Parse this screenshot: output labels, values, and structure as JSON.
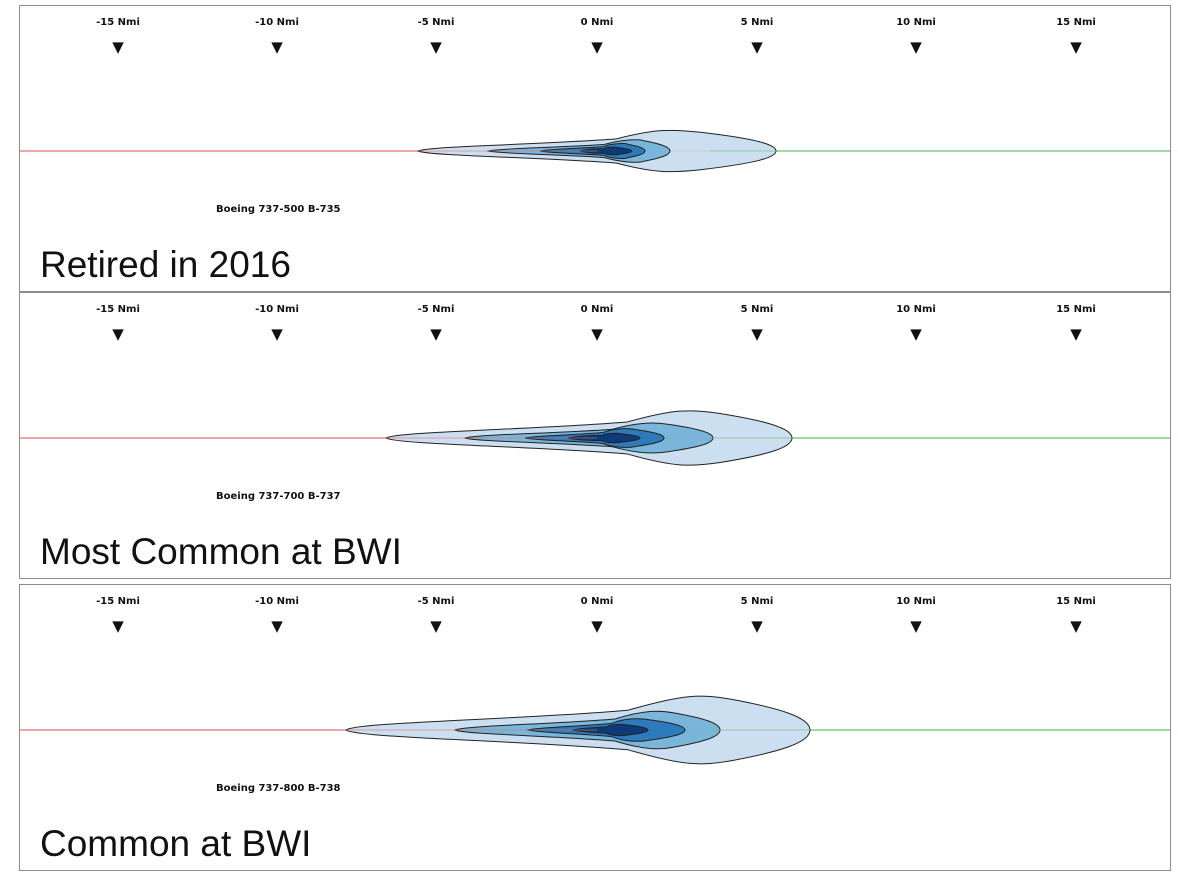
{
  "ticks": [
    "-15 Nmi",
    "-10 Nmi",
    "-5 Nmi",
    "0 Nmi",
    "5 Nmi",
    "10 Nmi",
    "15 Nmi"
  ],
  "arrow_glyph": "▼",
  "colors": {
    "approach_line": "#e8736f",
    "departure_line": "#6cc36a",
    "contour_outer": "#c6dbef",
    "contour_2": "#6baed6",
    "contour_3": "#2171b5",
    "contour_inner": "#08306b",
    "contour_stroke": "#222222"
  },
  "panels": [
    {
      "aircraft": "Boeing 737-500 B-735",
      "caption": "Retired in 2016"
    },
    {
      "aircraft": "Boeing 737-700 B-737",
      "caption": "Most Common at BWI"
    },
    {
      "aircraft": "Boeing 737-800 B-738",
      "caption": "Common at BWI"
    }
  ]
}
